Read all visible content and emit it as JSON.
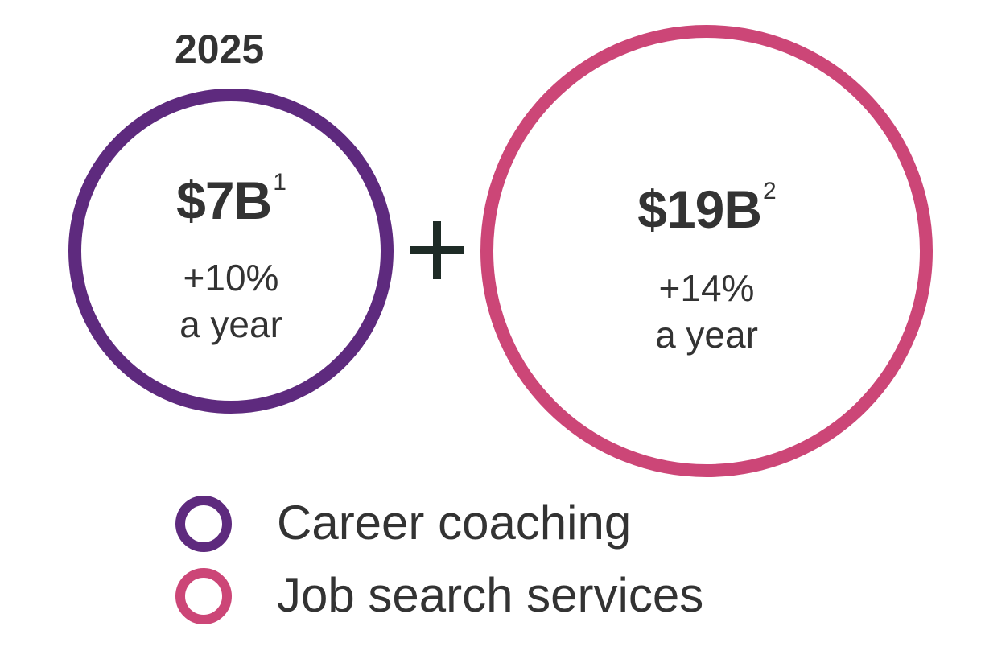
{
  "chart_data": {
    "type": "bubble",
    "title": "2025",
    "series": [
      {
        "name": "Career coaching",
        "value_label": "$7B",
        "value_billion_usd": 7,
        "footnote": "1",
        "growth_label": "+10%",
        "growth_suffix": "a year",
        "growth_percent_per_year": 10,
        "color": "#5e2a7e"
      },
      {
        "name": "Job search services",
        "value_label": "$19B",
        "value_billion_usd": 19,
        "footnote": "2",
        "growth_label": "+14%",
        "growth_suffix": "a year",
        "growth_percent_per_year": 14,
        "color": "#cc4677"
      }
    ],
    "operator": "+",
    "legend": [
      {
        "label": "Career coaching",
        "color": "#5e2a7e"
      },
      {
        "label": "Job search services",
        "color": "#cc4677"
      }
    ],
    "legend_position": "bottom"
  }
}
